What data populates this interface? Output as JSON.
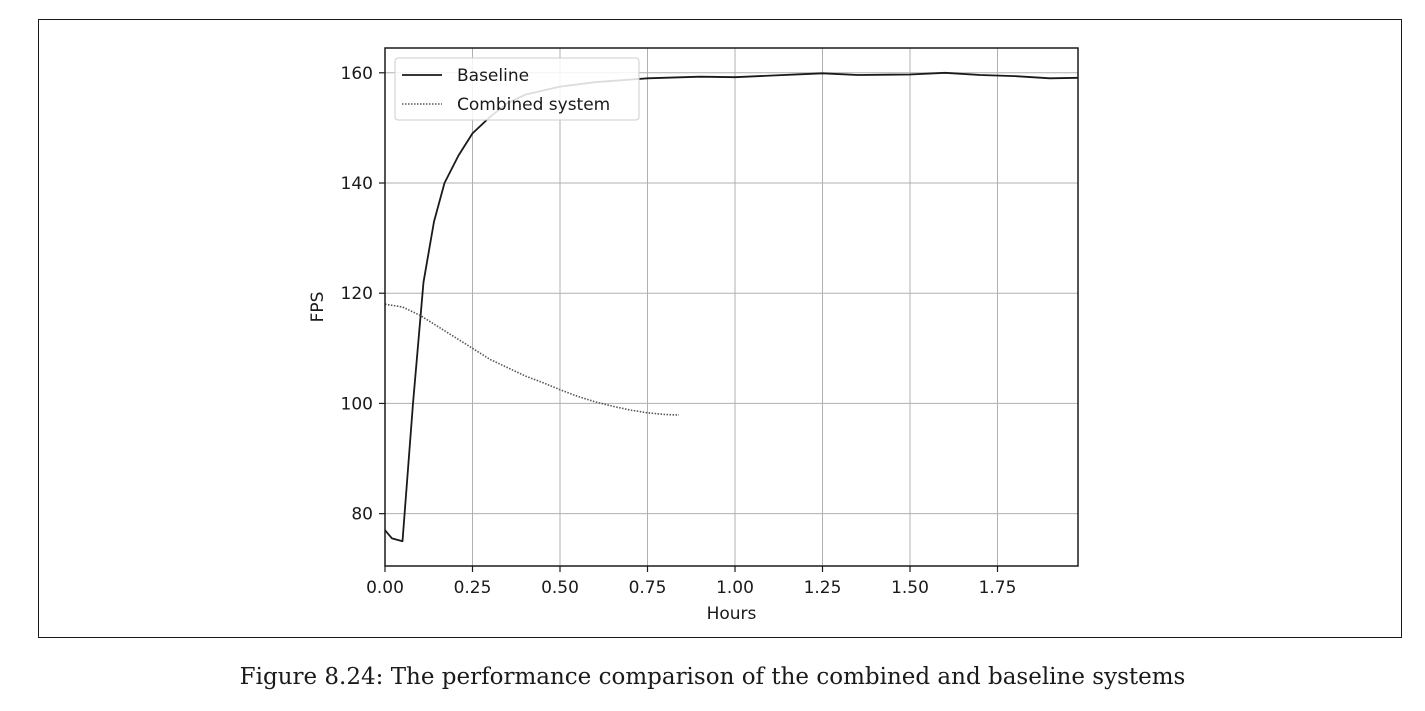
{
  "caption": "Figure 8.24: The performance comparison of the combined and baseline systems",
  "chart_data": {
    "type": "line",
    "title": "",
    "xlabel": "Hours",
    "ylabel": "FPS",
    "xlim": [
      0,
      1.98
    ],
    "ylim": [
      70.5,
      164.5
    ],
    "xticks": [
      0,
      0.25,
      0.5,
      0.75,
      1.0,
      1.25,
      1.5,
      1.75
    ],
    "xtick_labels": [
      "0.00",
      "0.25",
      "0.50",
      "0.75",
      "1.00",
      "1.25",
      "1.50",
      "1.75"
    ],
    "yticks": [
      80,
      100,
      120,
      140,
      160
    ],
    "ytick_labels": [
      "80",
      "100",
      "120",
      "140",
      "160"
    ],
    "grid": true,
    "legend_position": "top-left",
    "series": [
      {
        "name": "Baseline",
        "style": "solid",
        "color": "#1a1a1a",
        "x": [
          0.0,
          0.02,
          0.05,
          0.08,
          0.11,
          0.14,
          0.17,
          0.21,
          0.25,
          0.3,
          0.35,
          0.4,
          0.5,
          0.6,
          0.75,
          0.9,
          1.0,
          1.1,
          1.25,
          1.35,
          1.5,
          1.6,
          1.7,
          1.8,
          1.9,
          1.98
        ],
        "y": [
          77,
          75.5,
          75,
          100,
          122,
          133,
          140,
          145,
          149,
          152,
          154.5,
          156,
          157.5,
          158.3,
          159,
          159.3,
          159.2,
          159.5,
          159.9,
          159.6,
          159.7,
          160,
          159.6,
          159.4,
          159,
          159.1
        ]
      },
      {
        "name": "Combined system",
        "style": "dotted",
        "color": "#555555",
        "x": [
          0.0,
          0.05,
          0.1,
          0.15,
          0.2,
          0.25,
          0.3,
          0.35,
          0.4,
          0.45,
          0.5,
          0.55,
          0.6,
          0.65,
          0.7,
          0.75,
          0.8,
          0.84
        ],
        "y": [
          118,
          117.5,
          116,
          114,
          112,
          110,
          108,
          106.5,
          105,
          103.8,
          102.5,
          101.3,
          100.3,
          99.5,
          98.8,
          98.3,
          98,
          97.9
        ]
      }
    ]
  }
}
